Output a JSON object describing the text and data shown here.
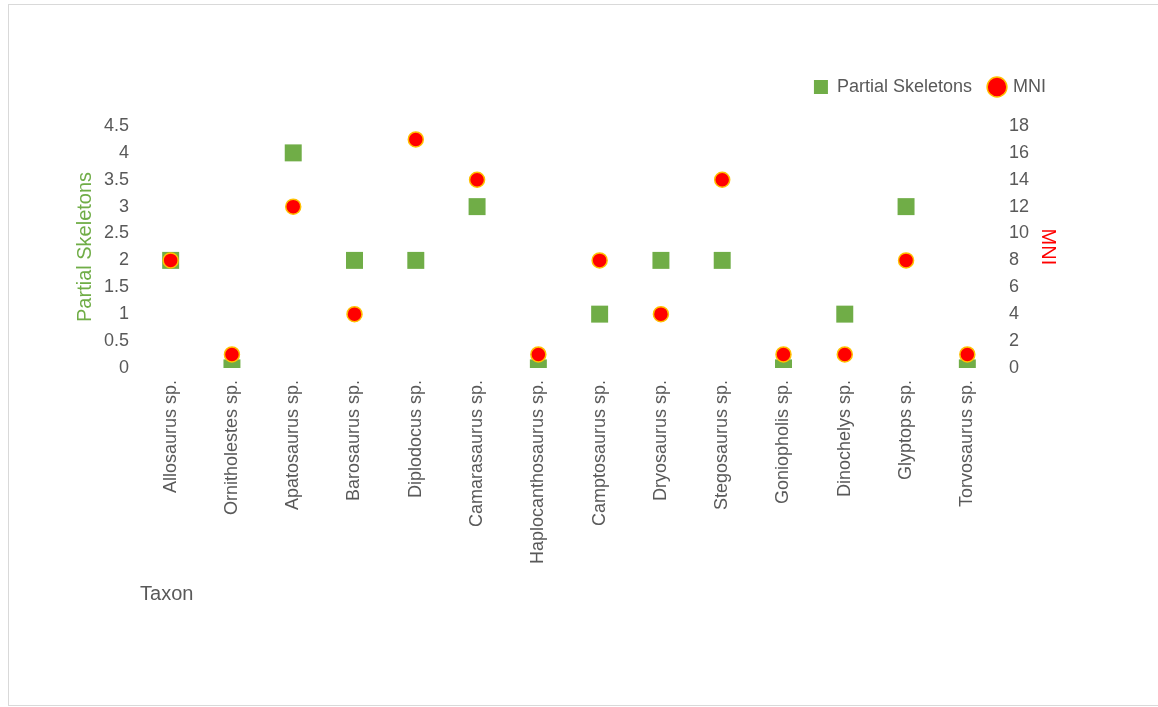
{
  "chart_data": {
    "type": "scatter",
    "xlabel": "Taxon",
    "ylabel": "Partial Skeletons",
    "y2label": "MNI",
    "categories": [
      "Allosaurus sp.",
      "Ornitholestes sp.",
      "Apatosaurus sp.",
      "Barosaurus sp.",
      "Diplodocus sp.",
      "Camarasaurus sp.",
      "Haplocanthosaurus sp.",
      "Camptosaurus sp.",
      "Dryosaurus sp.",
      "Stegosaurus sp.",
      "Goniopholis sp.",
      "Dinochelys sp.",
      "Glyptops sp.",
      "Torvosaurus sp."
    ],
    "series": [
      {
        "name": "Partial Skeletons",
        "type": "scatter",
        "marker": "square",
        "color": "#70ad47",
        "values": [
          2,
          0,
          4,
          2,
          2,
          3,
          0,
          1,
          2,
          2,
          0,
          1,
          3,
          0
        ]
      },
      {
        "name": "MNI",
        "type": "scatter",
        "marker": "circle",
        "color": "#ff0000",
        "axis": "y2",
        "values": [
          8,
          1,
          12,
          4,
          17,
          14,
          1,
          8,
          4,
          14,
          1,
          1,
          8,
          1
        ]
      }
    ],
    "ylim": [
      0,
      4.5
    ],
    "yticks": [
      0,
      0.5,
      1,
      1.5,
      2,
      2.5,
      3,
      3.5,
      4,
      4.5
    ],
    "y2lim": [
      0,
      18
    ],
    "y2ticks": [
      0,
      2,
      4,
      6,
      8,
      10,
      12,
      14,
      16,
      18
    ],
    "grid": false,
    "legend": "top right"
  }
}
